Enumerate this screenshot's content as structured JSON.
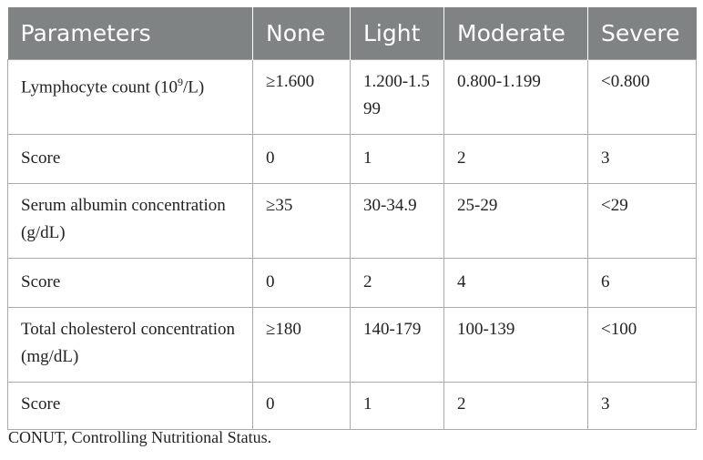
{
  "table": {
    "headers": [
      "Parameters",
      "None",
      "Light",
      "Moderate",
      "Severe"
    ],
    "rows": [
      {
        "param": "Lymphocyte count (10",
        "param_sup": "9",
        "param_after": "/L)",
        "none": "≥1.600",
        "light": "1.200-1.599",
        "moderate": "0.800-1.199",
        "severe": "<0.800"
      },
      {
        "param": "Score",
        "none": "0",
        "light": "1",
        "moderate": "2",
        "severe": "3"
      },
      {
        "param": "Serum albumin concentration (g/dL)",
        "none": "≥35",
        "light": "30-34.9",
        "moderate": "25-29",
        "severe": "<29"
      },
      {
        "param": "Score",
        "none": "0",
        "light": "2",
        "moderate": "4",
        "severe": "6"
      },
      {
        "param": "Total cholesterol concentration (mg/dL)",
        "none": "≥180",
        "light": "140-179",
        "moderate": "100-139",
        "severe": "<100"
      },
      {
        "param": "Score",
        "none": "0",
        "light": "1",
        "moderate": "2",
        "severe": "3"
      }
    ]
  },
  "caption": "CONUT, Controlling Nutritional Status.",
  "colors": {
    "header_bg": "#7f8384",
    "header_text": "#ffffff",
    "grid": "#aaaaaa"
  }
}
